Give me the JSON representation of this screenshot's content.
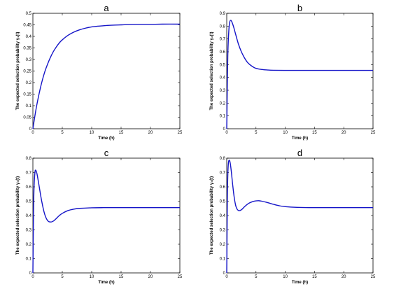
{
  "figure": {
    "background": "#ffffff",
    "line_color": "#1515c8"
  },
  "chart_data": [
    {
      "type": "line",
      "title": "a",
      "xlabel": "Time (h)",
      "ylabel": "The expected selection probability  γ₁(t)",
      "xlim": [
        0,
        25
      ],
      "ylim": [
        0,
        0.5
      ],
      "xticks": [
        "0",
        "5",
        "10",
        "15",
        "20",
        "25"
      ],
      "yticks": [
        "0",
        "0.05",
        "0.1",
        "0.15",
        "0.2",
        "0.25",
        "0.3",
        "0.35",
        "0.4",
        "0.45",
        "0.5"
      ],
      "grid": false,
      "series": [
        {
          "x": [
            0,
            0.5,
            1,
            1.5,
            2,
            2.5,
            3,
            3.5,
            4,
            4.5,
            5,
            6,
            7,
            8,
            9,
            10,
            11,
            12,
            13,
            14,
            15,
            16,
            18,
            20,
            22,
            25
          ],
          "y": [
            0,
            0.08,
            0.145,
            0.2,
            0.245,
            0.28,
            0.31,
            0.335,
            0.355,
            0.372,
            0.385,
            0.405,
            0.419,
            0.429,
            0.436,
            0.441,
            0.444,
            0.446,
            0.448,
            0.449,
            0.45,
            0.451,
            0.452,
            0.452,
            0.453,
            0.453
          ]
        }
      ]
    },
    {
      "type": "line",
      "title": "b",
      "xlabel": "Time (h)",
      "ylabel": "The expected selection probability  γ₂(t)",
      "xlim": [
        0,
        25
      ],
      "ylim": [
        0,
        0.9
      ],
      "xticks": [
        "0",
        "5",
        "10",
        "15",
        "20",
        "25"
      ],
      "yticks": [
        "0",
        "0.1",
        "0.2",
        "0.3",
        "0.4",
        "0.5",
        "0.6",
        "0.7",
        "0.8",
        "0.9"
      ],
      "grid": false,
      "series": [
        {
          "x": [
            0,
            0.1,
            0.2,
            0.35,
            0.5,
            0.7,
            0.9,
            1.2,
            1.5,
            2,
            2.5,
            3,
            3.5,
            4,
            4.5,
            5,
            6,
            7,
            8,
            10,
            12,
            15,
            20,
            25
          ],
          "y": [
            0,
            0.35,
            0.6,
            0.76,
            0.83,
            0.845,
            0.83,
            0.79,
            0.74,
            0.66,
            0.6,
            0.555,
            0.52,
            0.498,
            0.482,
            0.471,
            0.462,
            0.458,
            0.456,
            0.455,
            0.455,
            0.455,
            0.455,
            0.455
          ]
        }
      ]
    },
    {
      "type": "line",
      "title": "c",
      "xlabel": "Time (h)",
      "ylabel": "The expected selection probability  γ₃(t)",
      "xlim": [
        0,
        25
      ],
      "ylim": [
        0,
        0.8
      ],
      "xticks": [
        "0",
        "5",
        "10",
        "15",
        "20",
        "25"
      ],
      "yticks": [
        "0",
        "0.1",
        "0.2",
        "0.3",
        "0.4",
        "0.5",
        "0.6",
        "0.7",
        "0.8"
      ],
      "grid": false,
      "series": [
        {
          "x": [
            0,
            0.1,
            0.2,
            0.35,
            0.5,
            0.7,
            1,
            1.5,
            2,
            2.5,
            3,
            3.5,
            4,
            4.5,
            5,
            6,
            7,
            8,
            10,
            12,
            15,
            20,
            25
          ],
          "y": [
            0,
            0.4,
            0.6,
            0.7,
            0.715,
            0.69,
            0.62,
            0.5,
            0.41,
            0.365,
            0.355,
            0.362,
            0.38,
            0.4,
            0.415,
            0.435,
            0.445,
            0.45,
            0.454,
            0.455,
            0.455,
            0.455,
            0.455
          ]
        }
      ]
    },
    {
      "type": "line",
      "title": "d",
      "xlabel": "Time (h)",
      "ylabel": "The expected selection probability  γ₄(t)",
      "xlim": [
        0,
        25
      ],
      "ylim": [
        0,
        0.8
      ],
      "xticks": [
        "0",
        "5",
        "10",
        "15",
        "20",
        "25"
      ],
      "yticks": [
        "0",
        "0.1",
        "0.2",
        "0.3",
        "0.4",
        "0.5",
        "0.6",
        "0.7",
        "0.8"
      ],
      "grid": false,
      "series": [
        {
          "x": [
            0,
            0.1,
            0.2,
            0.3,
            0.45,
            0.6,
            0.8,
            1,
            1.3,
            1.6,
            2,
            2.5,
            3,
            3.5,
            4,
            4.5,
            5,
            5.5,
            6,
            7,
            8,
            9,
            10,
            12,
            15,
            20,
            25
          ],
          "y": [
            0,
            0.5,
            0.7,
            0.77,
            0.785,
            0.765,
            0.7,
            0.62,
            0.52,
            0.46,
            0.435,
            0.44,
            0.46,
            0.478,
            0.49,
            0.498,
            0.502,
            0.503,
            0.5,
            0.49,
            0.478,
            0.468,
            0.462,
            0.457,
            0.455,
            0.455,
            0.455
          ]
        }
      ]
    }
  ]
}
